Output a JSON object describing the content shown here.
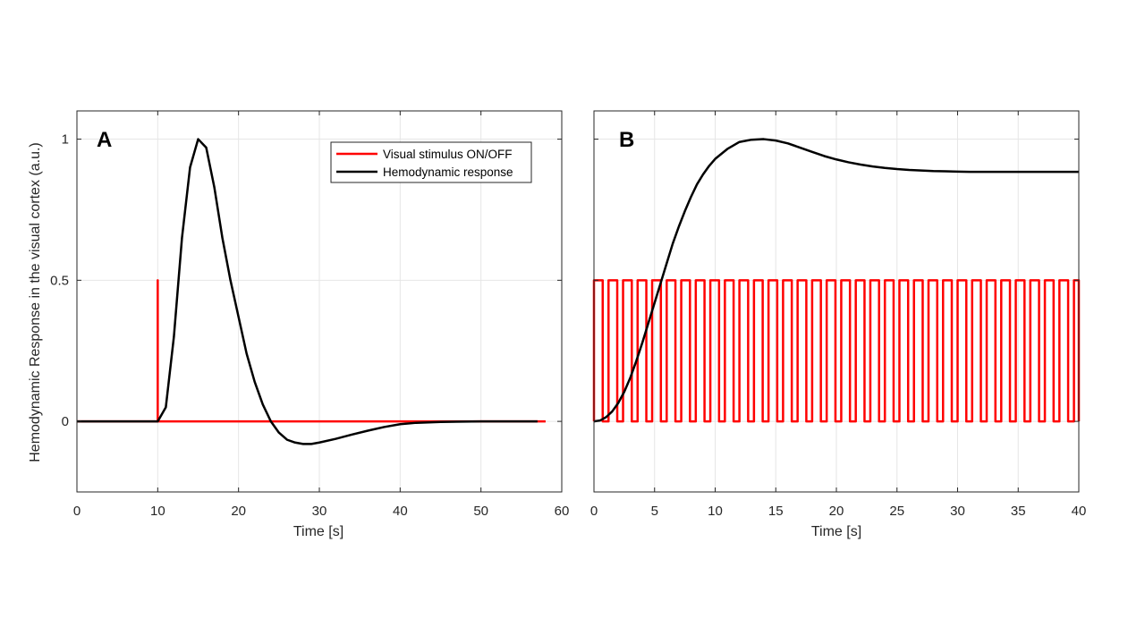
{
  "figure": {
    "ylabel": "Hemodynamic Response in the visual cortex (a.u.)"
  },
  "chart_data": [
    {
      "type": "line",
      "panel": "A",
      "xlabel": "Time [s]",
      "ylabel": "Hemodynamic Response in the visual cortex (a.u.)",
      "xlim": [
        0,
        60
      ],
      "ylim": [
        -0.25,
        1.1
      ],
      "xticks": [
        0,
        10,
        20,
        30,
        40,
        50,
        60
      ],
      "yticks": [
        0,
        0.5,
        1
      ],
      "ytick_labels": [
        "0",
        "0.5",
        "1"
      ],
      "grid": true,
      "legend": {
        "placement": "top-right",
        "entries": [
          "Visual stimulus ON/OFF",
          "Hemodynamic response"
        ]
      },
      "series": [
        {
          "name": "Visual stimulus ON/OFF",
          "color": "#ff0000",
          "x": [
            0,
            10,
            10,
            10,
            58
          ],
          "y": [
            0,
            0,
            0.5,
            0,
            0
          ]
        },
        {
          "name": "Hemodynamic response",
          "color": "#000000",
          "x": [
            0,
            10,
            11,
            12,
            13,
            14,
            15,
            16,
            17,
            18,
            19,
            20,
            21,
            22,
            23,
            24,
            25,
            26,
            27,
            28,
            29,
            30,
            32,
            34,
            36,
            38,
            40,
            42,
            45,
            50,
            55,
            57
          ],
          "y": [
            0,
            0,
            0.05,
            0.3,
            0.65,
            0.9,
            1.0,
            0.97,
            0.83,
            0.65,
            0.5,
            0.37,
            0.24,
            0.14,
            0.06,
            0.0,
            -0.04,
            -0.065,
            -0.075,
            -0.08,
            -0.08,
            -0.075,
            -0.062,
            -0.047,
            -0.033,
            -0.02,
            -0.01,
            -0.005,
            -0.002,
            0,
            0,
            0
          ]
        }
      ]
    },
    {
      "type": "line",
      "panel": "B",
      "xlabel": "Time [s]",
      "xlim": [
        0,
        40
      ],
      "ylim": [
        -0.25,
        1.1
      ],
      "xticks": [
        0,
        5,
        10,
        15,
        20,
        25,
        30,
        35,
        40
      ],
      "yticks": [
        0,
        0.5,
        1
      ],
      "grid": true,
      "series": [
        {
          "name": "Visual stimulus ON/OFF",
          "color": "#ff0000",
          "waveform": "square",
          "period": 1.2,
          "duty_on": 0.6,
          "low": 0,
          "high": 0.5,
          "start": 0,
          "end": 40
        },
        {
          "name": "Hemodynamic response",
          "color": "#000000",
          "x": [
            0,
            0.5,
            1,
            1.5,
            2,
            2.5,
            3,
            3.5,
            4,
            4.5,
            5,
            5.5,
            6,
            6.5,
            7,
            7.5,
            8,
            8.5,
            9,
            9.5,
            10,
            11,
            12,
            13,
            14,
            15,
            16,
            17,
            18,
            19,
            20,
            21,
            22,
            23,
            24,
            25,
            26,
            27,
            28,
            29,
            30,
            31,
            32,
            33,
            34,
            35,
            36,
            37,
            38,
            39,
            40
          ],
          "y": [
            0,
            0.003,
            0.015,
            0.035,
            0.065,
            0.105,
            0.155,
            0.215,
            0.28,
            0.35,
            0.42,
            0.49,
            0.56,
            0.63,
            0.69,
            0.745,
            0.795,
            0.84,
            0.875,
            0.905,
            0.93,
            0.965,
            0.99,
            0.998,
            1.0,
            0.995,
            0.985,
            0.97,
            0.955,
            0.94,
            0.928,
            0.918,
            0.91,
            0.903,
            0.898,
            0.894,
            0.891,
            0.889,
            0.887,
            0.886,
            0.885,
            0.884,
            0.884,
            0.884,
            0.884,
            0.884,
            0.884,
            0.884,
            0.884,
            0.884,
            0.884
          ]
        }
      ]
    }
  ]
}
